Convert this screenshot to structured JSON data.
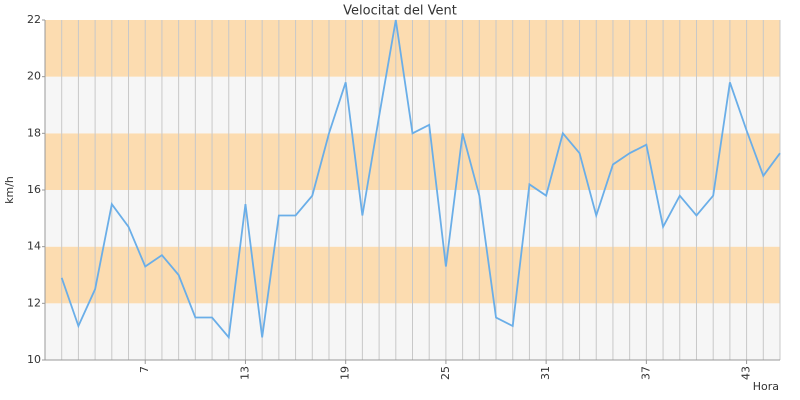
{
  "chart_data": {
    "type": "line",
    "title": "Velocitat del Vent",
    "x_label": "Hora",
    "y_label": "km/h",
    "x": [
      2,
      3,
      4,
      5,
      6,
      7,
      8,
      9,
      10,
      11,
      12,
      13,
      14,
      15,
      16,
      17,
      18,
      19,
      20,
      21,
      22,
      23,
      24,
      25,
      26,
      27,
      28,
      29,
      30,
      31,
      32,
      33,
      34,
      35,
      36,
      37,
      38,
      39,
      40,
      41,
      42,
      43,
      44,
      45
    ],
    "series": [
      {
        "name": "Velocitat",
        "color": "#6aaee8",
        "values": [
          12.9,
          11.2,
          12.5,
          15.5,
          14.7,
          13.3,
          13.7,
          13.0,
          11.5,
          11.5,
          10.8,
          15.5,
          10.8,
          15.1,
          15.1,
          15.8,
          18.0,
          19.8,
          15.1,
          18.6,
          22.0,
          18.0,
          18.3,
          13.3,
          18.0,
          15.8,
          11.5,
          11.2,
          16.2,
          15.8,
          18.0,
          17.3,
          15.1,
          16.9,
          17.3,
          17.6,
          14.7,
          15.8,
          15.1,
          15.8,
          19.8,
          18.1,
          16.5,
          17.3
        ]
      }
    ],
    "xlim": [
      1,
      45
    ],
    "xticks": [
      7,
      13,
      19,
      25,
      31,
      37,
      43
    ],
    "ylim": [
      10,
      22
    ],
    "yticks": [
      10,
      12,
      14,
      16,
      18,
      20,
      22
    ],
    "band_colors": [
      "#f6f6f6",
      "#fcdcb0"
    ],
    "grid": true
  }
}
